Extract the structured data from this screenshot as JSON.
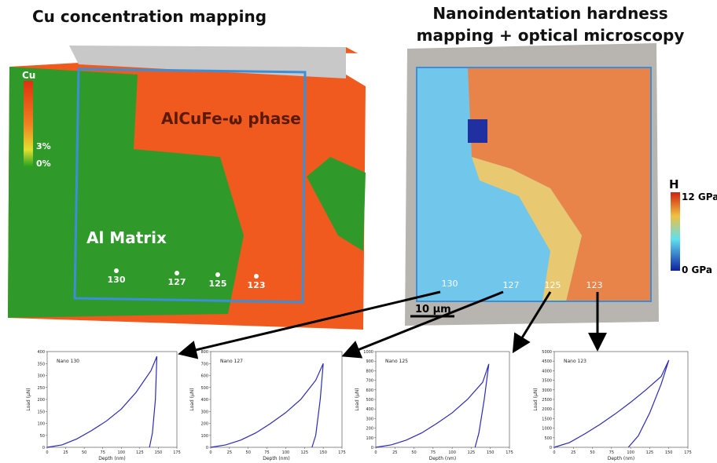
{
  "left_panel": {
    "title": "Cu concentration mapping",
    "scale_title": "Cu",
    "scale_mid": "3%",
    "scale_min": "0%",
    "phase_label": "AlCuFe-ω phase",
    "matrix_label": "Al Matrix",
    "points": [
      "130",
      "127",
      "125",
      "123"
    ]
  },
  "right_panel": {
    "title_lines": [
      "Nanoindentation hardness",
      "mapping + optical microscopy"
    ],
    "scale_title": "H",
    "scale_max": "12 GPa",
    "scale_min": "0 GPa",
    "points": [
      "130",
      "127",
      "125",
      "123"
    ],
    "scale_bar": "10 µm"
  },
  "chart_data": [
    {
      "type": "line",
      "title": "Nano 130",
      "x_label": "Depth (nm)",
      "y_label": "Load (µN)",
      "color": "#2b2bb5",
      "xlim": [
        0,
        175
      ],
      "xticks": [
        0,
        25,
        50,
        75,
        100,
        125,
        150,
        175
      ],
      "ylim": [
        0,
        400
      ],
      "yticks": [
        0,
        50,
        100,
        150,
        200,
        250,
        300,
        350,
        400
      ],
      "series": [
        {
          "x": [
            0,
            20,
            40,
            60,
            80,
            100,
            120,
            140,
            148,
            146,
            142,
            138
          ],
          "values": [
            0,
            10,
            35,
            70,
            110,
            160,
            230,
            320,
            380,
            200,
            60,
            0
          ]
        }
      ]
    },
    {
      "type": "line",
      "title": "Nano 127",
      "x_label": "Depth (nm)",
      "y_label": "Load (µN)",
      "color": "#2b2bb5",
      "xlim": [
        0,
        175
      ],
      "xticks": [
        0,
        25,
        50,
        75,
        100,
        125,
        150,
        175
      ],
      "ylim": [
        0,
        800
      ],
      "yticks": [
        0,
        100,
        200,
        300,
        400,
        500,
        600,
        700,
        800
      ],
      "series": [
        {
          "x": [
            0,
            20,
            40,
            60,
            80,
            100,
            120,
            140,
            150,
            146,
            140,
            135
          ],
          "values": [
            0,
            20,
            60,
            120,
            200,
            290,
            400,
            560,
            700,
            400,
            100,
            0
          ]
        }
      ]
    },
    {
      "type": "line",
      "title": "Nano 125",
      "x_label": "Depth (nm)",
      "y_label": "Load (µN)",
      "color": "#2b2bb5",
      "xlim": [
        0,
        175
      ],
      "xticks": [
        0,
        25,
        50,
        75,
        100,
        125,
        150,
        175
      ],
      "ylim": [
        0,
        1000
      ],
      "yticks": [
        0,
        100,
        200,
        300,
        400,
        500,
        600,
        700,
        800,
        900,
        1000
      ],
      "series": [
        {
          "x": [
            0,
            20,
            40,
            60,
            80,
            100,
            120,
            140,
            148,
            142,
            135,
            130
          ],
          "values": [
            0,
            25,
            75,
            150,
            250,
            360,
            500,
            680,
            870,
            500,
            150,
            0
          ]
        }
      ]
    },
    {
      "type": "line",
      "title": "Nano 123",
      "x_label": "Depth (nm)",
      "y_label": "Load (µN)",
      "color": "#2b2bb5",
      "xlim": [
        0,
        175
      ],
      "xticks": [
        0,
        25,
        50,
        75,
        100,
        125,
        150,
        175
      ],
      "ylim": [
        0,
        5000
      ],
      "yticks": [
        0,
        500,
        1000,
        1500,
        2000,
        2500,
        3000,
        3500,
        4000,
        4500,
        5000
      ],
      "series": [
        {
          "x": [
            0,
            20,
            40,
            60,
            80,
            100,
            120,
            140,
            150,
            140,
            125,
            110,
            97
          ],
          "values": [
            0,
            250,
            700,
            1200,
            1750,
            2350,
            3000,
            3700,
            4550,
            3300,
            1800,
            600,
            0
          ]
        }
      ]
    }
  ]
}
